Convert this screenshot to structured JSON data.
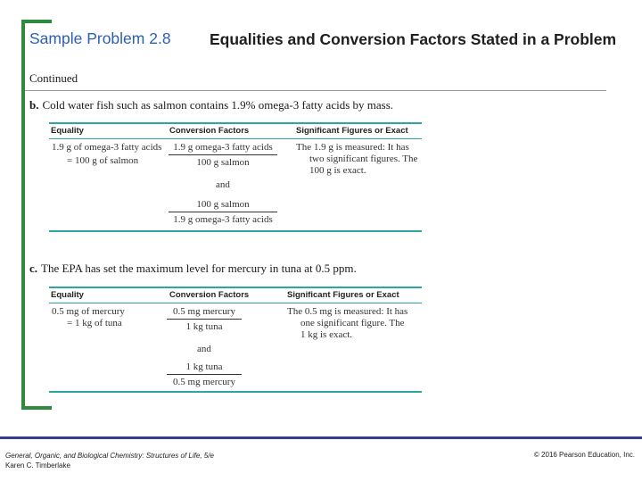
{
  "title": {
    "number": "Sample Problem 2.8",
    "text": "Equalities and Conversion Factors Stated in a Problem"
  },
  "continued": "Continued",
  "problems": [
    {
      "letter": "b.",
      "text": "Cold water fish such as salmon contains 1.9% omega-3 fatty acids by mass.",
      "headers": [
        "Equality",
        "Conversion Factors",
        "Significant Figures or Exact"
      ],
      "equality": [
        "1.9 g of omega-3 fatty acids",
        "= 100 g of salmon"
      ],
      "factor1": {
        "num": "1.9 g omega-3 fatty acids",
        "den": "100 g salmon"
      },
      "and": "and",
      "factor2": {
        "num": "100 g salmon",
        "den": "1.9 g omega-3 fatty acids"
      },
      "sigfigs": [
        "The 1.9 g is measured: It has",
        "two significant figures. The",
        "100 g is exact."
      ]
    },
    {
      "letter": "c.",
      "text": "The EPA has set the maximum level for mercury in tuna at 0.5 ppm.",
      "headers": [
        "Equality",
        "Conversion Factors",
        "Significant Figures or Exact"
      ],
      "equality": [
        "0.5 mg of mercury",
        "= 1 kg of tuna"
      ],
      "factor1": {
        "num": "0.5 mg mercury",
        "den": "1 kg tuna"
      },
      "and": "and",
      "factor2": {
        "num": "1 kg tuna",
        "den": "0.5 mg mercury"
      },
      "sigfigs": [
        "The 0.5 mg is measured: It has",
        "one significant figure. The",
        "1 kg is exact."
      ]
    }
  ],
  "footer": {
    "left_line1": "General, Organic, and Biological Chemistry: Structures of Life, 5/e",
    "left_line2": "Karen C. Timberlake",
    "right": "© 2016 Pearson Education, Inc."
  }
}
